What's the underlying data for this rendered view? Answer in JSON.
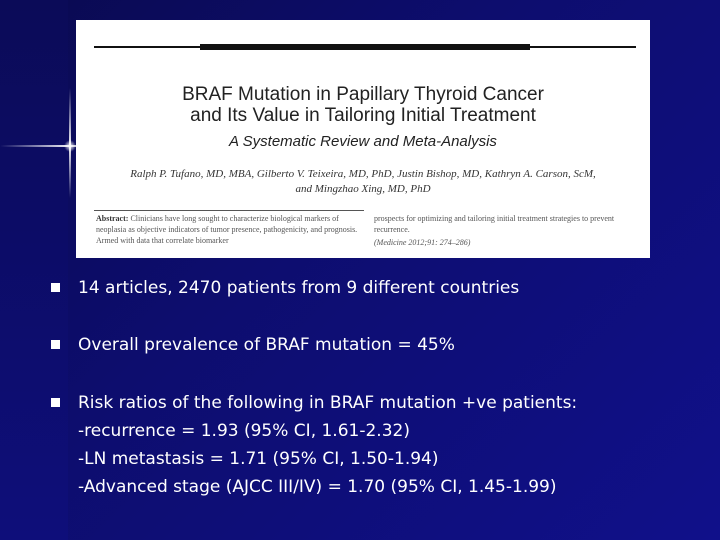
{
  "article": {
    "title_line1": "BRAF Mutation in Papillary Thyroid Cancer",
    "title_line2": "and Its Value in Tailoring Initial Treatment",
    "subtitle": "A Systematic Review and Meta-Analysis",
    "authors_line1": "Ralph P. Tufano, MD, MBA, Gilberto V. Teixeira, MD, PhD, Justin Bishop, MD, Kathryn A. Carson, ScM,",
    "authors_line2": "and Mingzhao Xing, MD, PhD",
    "abstract_label": "Abstract:",
    "abstract_text": "Clinicians have long sought to characterize biological markers of neoplasia as objective indicators of tumor presence, pathogenicity, and prognosis. Armed with data that correlate biomarker",
    "right_text": "prospects for optimizing and tailoring initial treatment strategies to prevent recurrence.",
    "citation": "(Medicine 2012;91: 274–286)"
  },
  "bullets": [
    {
      "lines": [
        "14 articles, 2470 patients from 9 different countries"
      ]
    },
    {
      "lines": [
        "Overall prevalence of BRAF mutation = 45%"
      ]
    },
    {
      "lines": [
        "Risk ratios of the following in BRAF mutation +ve patients:",
        "-recurrence = 1.93 (95% CI, 1.61-2.32)",
        "-LN metastasis = 1.71 (95% CI, 1.50-1.94)",
        "-Advanced stage (AJCC III/IV) = 1.70 (95% CI, 1.45-1.99)"
      ]
    }
  ]
}
